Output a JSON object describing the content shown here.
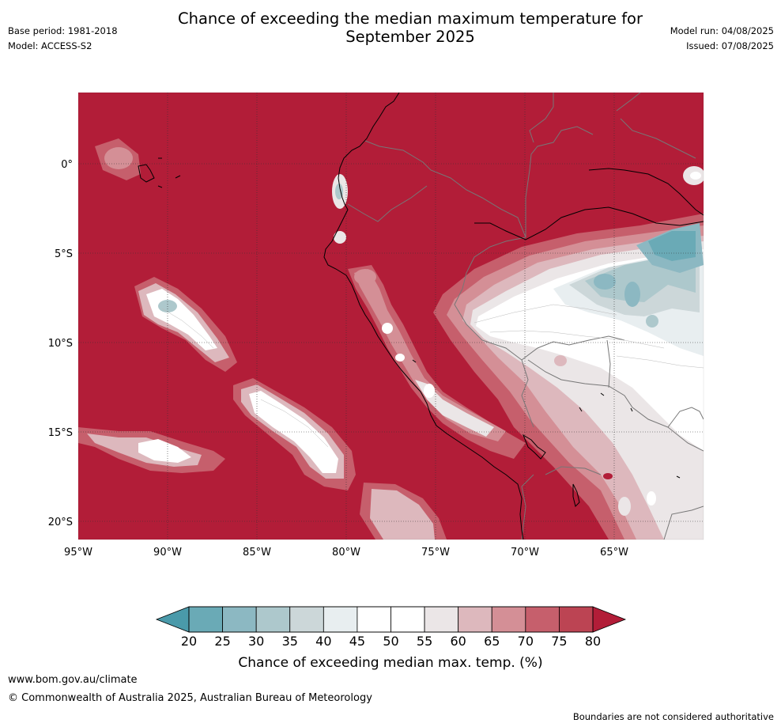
{
  "header": {
    "title_line1": "Chance of exceeding the median maximum temperature for",
    "title_line2": "September 2025",
    "base_period": "Base period: 1981-2018",
    "model": "Model: ACCESS-S2",
    "model_run": "Model run: 04/08/2025",
    "issued": "Issued: 07/08/2025"
  },
  "map": {
    "lon_range": [
      -95,
      -60
    ],
    "lat_range": [
      -21,
      4
    ],
    "lon_ticks": [
      {
        "value": -95,
        "label": "95°W"
      },
      {
        "value": -90,
        "label": "90°W"
      },
      {
        "value": -85,
        "label": "85°W"
      },
      {
        "value": -80,
        "label": "80°W"
      },
      {
        "value": -75,
        "label": "75°W"
      },
      {
        "value": -70,
        "label": "70°W"
      },
      {
        "value": -65,
        "label": "65°W"
      }
    ],
    "lat_ticks": [
      {
        "value": 0,
        "label": "0°"
      },
      {
        "value": -5,
        "label": "5°S"
      },
      {
        "value": -10,
        "label": "10°S"
      },
      {
        "value": -15,
        "label": "15°S"
      },
      {
        "value": -20,
        "label": "20°S"
      }
    ],
    "background_color": "#b21d38",
    "grid": true
  },
  "colorbar": {
    "label": "Chance of exceeding median max. temp. (%)",
    "ticks": [
      "20",
      "25",
      "30",
      "35",
      "40",
      "45",
      "50",
      "55",
      "60",
      "65",
      "70",
      "75",
      "80"
    ],
    "below_color": "#4a9aaa",
    "above_color": "#b21d38",
    "bins": [
      "#6aaab6",
      "#8cb8c2",
      "#adc8cc",
      "#ccd7d9",
      "#e8eef0",
      "#ffffff",
      "#ffffff",
      "#ebe6e7",
      "#ddb8bd",
      "#d48f96",
      "#c65f6c",
      "#bc4453"
    ]
  },
  "footer": {
    "url": "www.bom.gov.au/climate",
    "copyright": "© Commonwealth of Australia 2025, Australian Bureau of Meteorology",
    "disclaimer": "Boundaries are not considered authoritative"
  }
}
